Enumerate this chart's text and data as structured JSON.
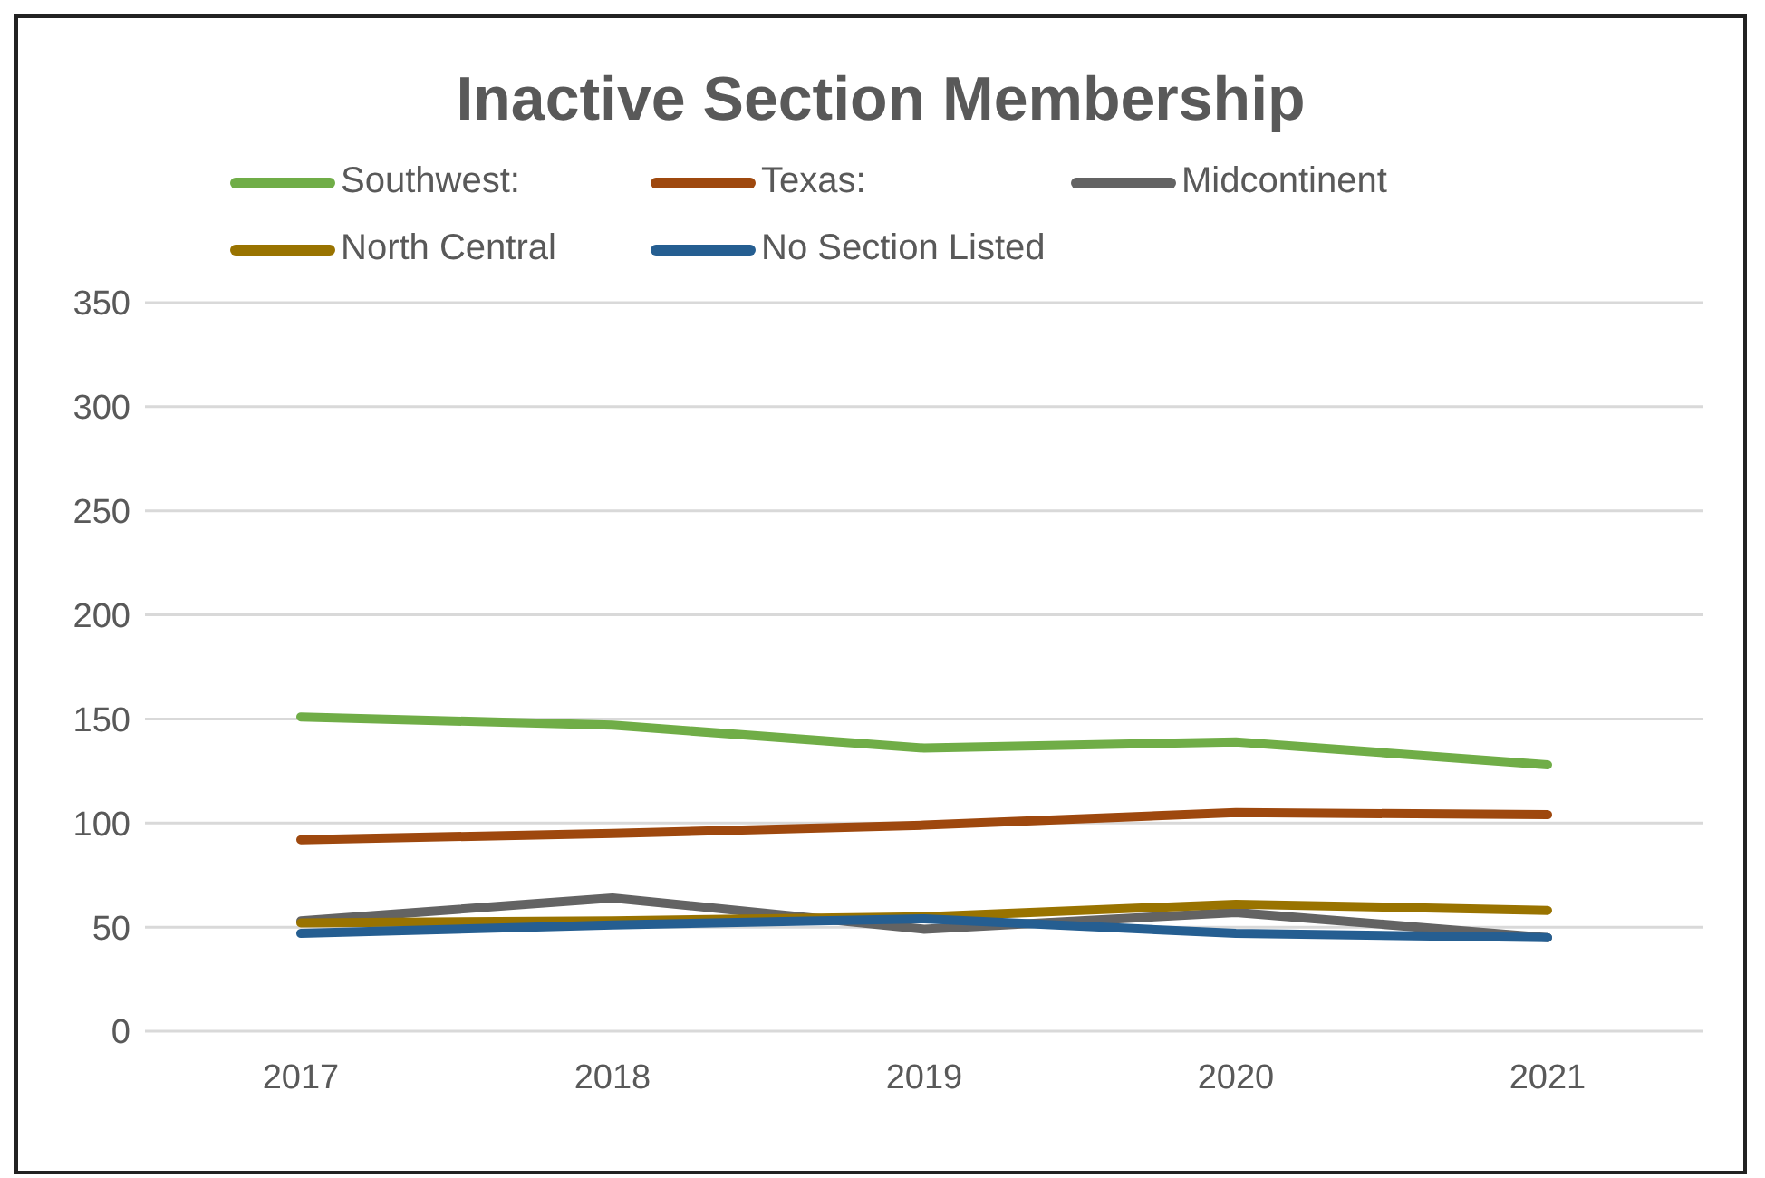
{
  "chart_data": {
    "type": "line",
    "title": "Inactive Section Membership",
    "categories": [
      "2017",
      "2018",
      "2019",
      "2020",
      "2021"
    ],
    "series": [
      {
        "name": "Southwest:",
        "color": "#70ad47",
        "values": [
          151,
          147,
          136,
          139,
          128
        ]
      },
      {
        "name": "Texas:",
        "color": "#9e480e",
        "values": [
          92,
          95,
          99,
          105,
          104
        ]
      },
      {
        "name": "Midcontinent",
        "color": "#636363",
        "values": [
          53,
          64,
          49,
          57,
          45
        ]
      },
      {
        "name": "North Central",
        "color": "#997300",
        "values": [
          52,
          53,
          55,
          61,
          58
        ]
      },
      {
        "name": "No Section Listed",
        "color": "#255e91",
        "values": [
          47,
          51,
          54,
          47,
          45
        ]
      }
    ],
    "ylim": [
      0,
      350
    ],
    "yticks": [
      0,
      50,
      100,
      150,
      200,
      250,
      300,
      350
    ],
    "grid": "y",
    "legend": "top",
    "marker": "none",
    "line_style": "solid"
  }
}
